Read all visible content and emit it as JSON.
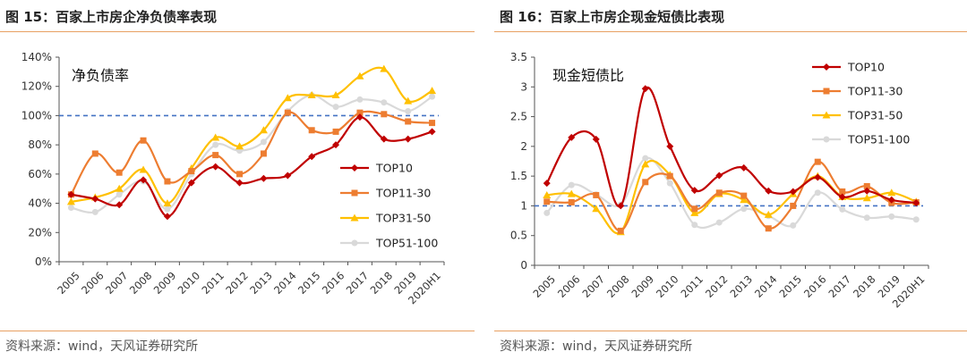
{
  "colors": {
    "TOP10": "#c00000",
    "TOP11-30": "#ed7d31",
    "TOP31-50": "#ffc000",
    "TOP51-100": "#d9d9d9",
    "reference_line": "#4472c4",
    "accent_rule": "#e8a062"
  },
  "left": {
    "figure_title": "图 15：百家上市房企净负债率表现",
    "source": "资料来源：wind，天风证券研究所",
    "chart_data": {
      "type": "line",
      "title": "净负债率",
      "categories": [
        "2005",
        "2006",
        "2007",
        "2008",
        "2009",
        "2010",
        "2011",
        "2012",
        "2013",
        "2014",
        "2015",
        "2016",
        "2017",
        "2018",
        "2019",
        "2020H1"
      ],
      "y_ticks": [
        "0%",
        "20%",
        "40%",
        "60%",
        "80%",
        "100%",
        "120%",
        "140%"
      ],
      "ylim": [
        0,
        140
      ],
      "unit": "%",
      "reference_line": 100,
      "legend_position": "right",
      "series": [
        {
          "name": "TOP10",
          "values": [
            46,
            43,
            39,
            56,
            31,
            54,
            65,
            54,
            57,
            59,
            72,
            80,
            99,
            84,
            84,
            89
          ]
        },
        {
          "name": "TOP11-30",
          "values": [
            46,
            74,
            61,
            83,
            55,
            62,
            73,
            60,
            74,
            102,
            90,
            89,
            102,
            101,
            96,
            95
          ]
        },
        {
          "name": "TOP31-50",
          "values": [
            41,
            44,
            50,
            63,
            40,
            64,
            85,
            79,
            90,
            112,
            114,
            114,
            127,
            132,
            110,
            117
          ]
        },
        {
          "name": "TOP51-100",
          "values": [
            37,
            34,
            46,
            55,
            36,
            60,
            80,
            76,
            82,
            103,
            114,
            106,
            111,
            109,
            103,
            113
          ]
        }
      ]
    }
  },
  "right": {
    "figure_title": "图 16：百家上市房企现金短债比表现",
    "source": "资料来源：wind，天风证券研究所",
    "chart_data": {
      "type": "line",
      "title": "现金短债比",
      "categories": [
        "2005",
        "2006",
        "2007",
        "2008",
        "2009",
        "2010",
        "2011",
        "2012",
        "2013",
        "2014",
        "2015",
        "2016",
        "2017",
        "2018",
        "2019",
        "2020H1"
      ],
      "y_ticks": [
        "0",
        "0.5",
        "1",
        "1.5",
        "2",
        "2.5",
        "3",
        "3.5"
      ],
      "ylim": [
        0,
        3.5
      ],
      "reference_line": 1,
      "legend_position": "top-right",
      "series": [
        {
          "name": "TOP10",
          "values": [
            1.38,
            2.15,
            2.12,
            1.0,
            2.97,
            2.0,
            1.26,
            1.51,
            1.64,
            1.25,
            1.24,
            1.48,
            1.15,
            1.25,
            1.1,
            1.05
          ]
        },
        {
          "name": "TOP11-30",
          "values": [
            1.07,
            1.06,
            1.18,
            0.58,
            1.4,
            1.5,
            0.95,
            1.22,
            1.17,
            0.62,
            1.0,
            1.74,
            1.24,
            1.33,
            1.05,
            1.06
          ]
        },
        {
          "name": "TOP31-50",
          "values": [
            1.18,
            1.2,
            0.95,
            0.56,
            1.7,
            1.52,
            0.88,
            1.2,
            1.1,
            0.85,
            1.2,
            1.5,
            1.15,
            1.13,
            1.22,
            1.07
          ]
        },
        {
          "name": "TOP51-100",
          "values": [
            0.88,
            1.35,
            1.19,
            1.02,
            1.8,
            1.38,
            0.68,
            0.72,
            0.95,
            0.83,
            0.67,
            1.22,
            0.94,
            0.8,
            0.82,
            0.77
          ]
        }
      ]
    }
  }
}
